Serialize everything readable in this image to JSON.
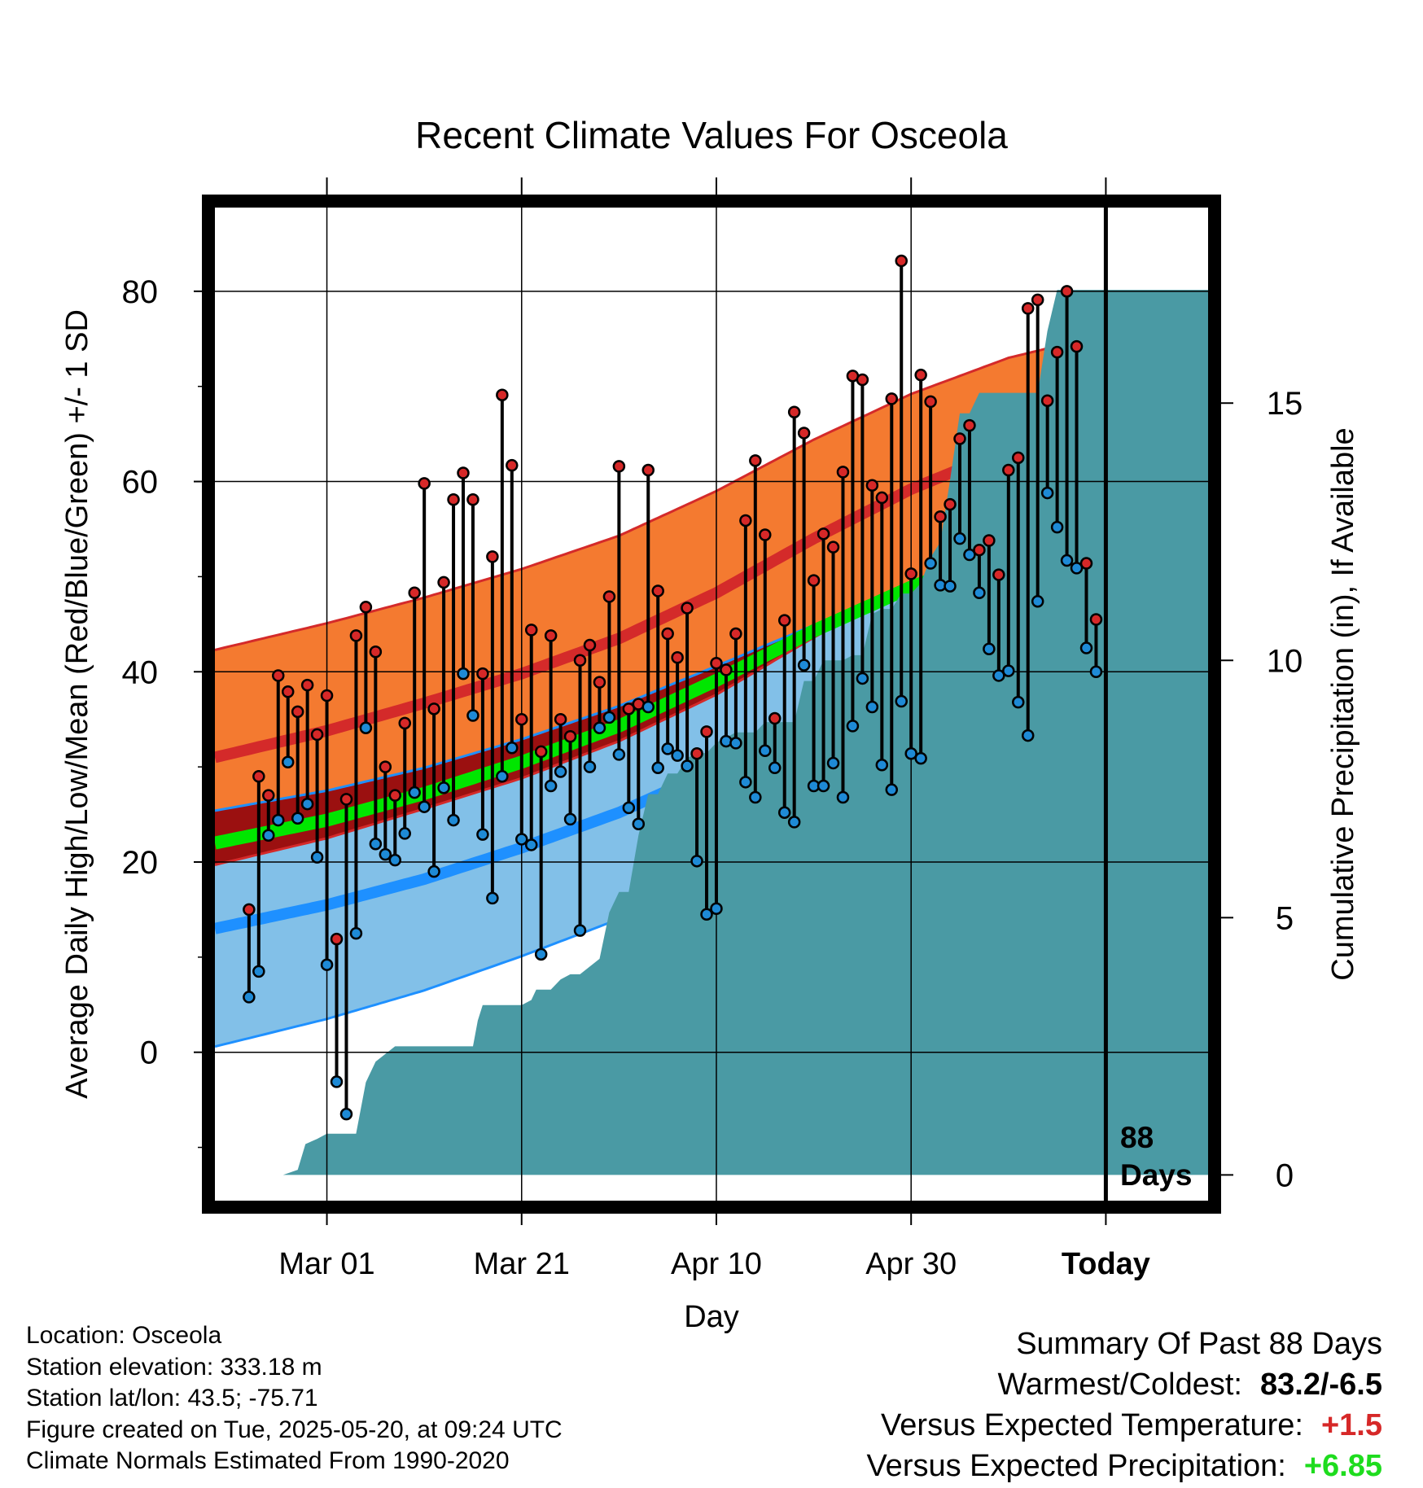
{
  "chart_data": {
    "type": "line",
    "title": "Recent Climate Values For Osceola",
    "xlabel": "Day",
    "ylabel": "Average Daily High/Low/Mean (Red/Blue/Green) +/- 1 SD",
    "y2label": "Cumulative Precipitation (in), If Available",
    "x_tick_labels": [
      "Mar 01",
      "Mar 21",
      "Apr 10",
      "Apr 30",
      "Today"
    ],
    "x_range_days": [
      -11.5,
      90.5
    ],
    "ylim": [
      -15.6,
      88.8
    ],
    "y_ticks": [
      0,
      20,
      40,
      60,
      80
    ],
    "y2lim": [
      -0.5,
      18.8
    ],
    "y2_ticks": [
      0,
      5,
      10,
      15
    ],
    "days_label": "88 Days",
    "grid": true,
    "colors": {
      "high_band": "#f47a30",
      "high_mean": "#d42a2a",
      "low_band": "#82c0e8",
      "low_mean": "#1e90ff",
      "mean": "#00e600",
      "precip": "#4a9aa4",
      "high_dot": "#d62828",
      "low_dot": "#1e8ad6"
    },
    "normals": {
      "day": [
        -11.5,
        0,
        10,
        20,
        30,
        40,
        50,
        60,
        70,
        80,
        90.5
      ],
      "high_mean": [
        31,
        33.8,
        36.7,
        39.8,
        43.5,
        48.3,
        54,
        59.2,
        63.4,
        66.3,
        69
      ],
      "high_sd": [
        11.3,
        11.3,
        11.1,
        11,
        10.8,
        10.7,
        10.4,
        10,
        9.6,
        9.2,
        8.8
      ],
      "low_mean": [
        13,
        15.5,
        18.2,
        21.5,
        25.2,
        29.8,
        34.5,
        38.6,
        42,
        45,
        48.7
      ],
      "low_sd": [
        12.4,
        12,
        11.7,
        11.4,
        11.2,
        10.8,
        10.4,
        9.9,
        9.5,
        9.2,
        7.6
      ],
      "mean": [
        22,
        24.4,
        27.2,
        30.5,
        34.3,
        39.1,
        44.3,
        48.9,
        52.7,
        55.6,
        58.8
      ]
    },
    "series": [
      {
        "name": "High",
        "x": [
          -8,
          -7,
          -6,
          -5,
          -4,
          -3,
          -2,
          -1,
          0,
          1,
          2,
          3,
          4,
          5,
          6,
          7,
          8,
          9,
          10,
          11,
          12,
          13,
          14,
          15,
          16,
          17,
          18,
          19,
          20,
          21,
          22,
          23,
          24,
          25,
          26,
          27,
          28,
          29,
          30,
          31,
          32,
          33,
          34,
          35,
          36,
          37,
          38,
          39,
          40,
          41,
          42,
          43,
          44,
          45,
          46,
          47,
          48,
          49,
          50,
          51,
          52,
          53,
          54,
          55,
          56,
          57,
          58,
          59,
          60,
          61,
          62,
          63,
          64,
          65,
          66,
          67,
          68,
          69,
          70,
          71,
          72,
          73,
          74,
          75,
          76,
          77,
          78,
          79
        ],
        "values": [
          15,
          29,
          27,
          39.6,
          37.9,
          35.8,
          38.6,
          33.4,
          37.5,
          11.9,
          26.6,
          43.8,
          46.8,
          42.1,
          30,
          27,
          34.6,
          48.3,
          59.8,
          36.1,
          49.4,
          58.1,
          60.9,
          58.1,
          39.8,
          52.1,
          69.1,
          61.7,
          35,
          44.4,
          31.6,
          43.8,
          35,
          33.2,
          41.2,
          42.8,
          38.9,
          47.9,
          61.6,
          36.1,
          36.6,
          61.2,
          48.5,
          44,
          41.5,
          46.7,
          31.4,
          33.7,
          40.9,
          40.2,
          44,
          55.9,
          62.2,
          54.4,
          35.1,
          45.4,
          67.3,
          65.1,
          49.6,
          54.5,
          53.1,
          61,
          71.1,
          70.7,
          59.6,
          58.3,
          68.7,
          83.2,
          50.3,
          71.2,
          68.4,
          56.3,
          57.6,
          64.5,
          65.9,
          52.8,
          53.8,
          50.2,
          61.2,
          62.5,
          78.2,
          79.1,
          68.5,
          73.6,
          80,
          74.2,
          51.4,
          45.5
        ]
      },
      {
        "name": "Low",
        "x": [
          -8,
          -7,
          -6,
          -5,
          -4,
          -3,
          -2,
          -1,
          0,
          1,
          2,
          3,
          4,
          5,
          6,
          7,
          8,
          9,
          10,
          11,
          12,
          13,
          14,
          15,
          16,
          17,
          18,
          19,
          20,
          21,
          22,
          23,
          24,
          25,
          26,
          27,
          28,
          29,
          30,
          31,
          32,
          33,
          34,
          35,
          36,
          37,
          38,
          39,
          40,
          41,
          42,
          43,
          44,
          45,
          46,
          47,
          48,
          49,
          50,
          51,
          52,
          53,
          54,
          55,
          56,
          57,
          58,
          59,
          60,
          61,
          62,
          63,
          64,
          65,
          66,
          67,
          68,
          69,
          70,
          71,
          72,
          73,
          74,
          75,
          76,
          77,
          78,
          79
        ],
        "values": [
          5.8,
          8.5,
          22.8,
          24.4,
          30.5,
          24.6,
          26.1,
          20.5,
          9.2,
          -3.1,
          -6.5,
          12.5,
          34.1,
          21.9,
          20.8,
          20.2,
          23,
          27.3,
          25.8,
          19,
          27.8,
          24.4,
          39.8,
          35.4,
          22.9,
          16.2,
          29,
          32,
          22.4,
          21.8,
          10.3,
          28,
          29.5,
          24.5,
          12.8,
          30,
          34.1,
          35.2,
          31.3,
          25.7,
          24,
          36.3,
          29.9,
          31.9,
          31.2,
          30.1,
          20.1,
          14.5,
          15.1,
          32.7,
          32.5,
          28.4,
          26.8,
          31.7,
          29.9,
          25.2,
          24.2,
          40.7,
          28,
          28,
          30.4,
          26.8,
          34.3,
          39.3,
          36.3,
          30.2,
          27.6,
          36.9,
          31.4,
          30.9,
          51.4,
          49.1,
          49,
          54,
          52.3,
          48.3,
          42.4,
          39.6,
          40.1,
          36.8,
          33.3,
          47.4,
          58.8,
          55.2,
          51.7,
          50.9,
          42.5,
          40
        ]
      }
    ],
    "precip": {
      "x": [
        -11.5,
        -4.5,
        -3,
        -2.2,
        -1,
        0,
        1,
        2,
        3,
        4,
        5,
        7,
        10,
        15,
        15.5,
        16,
        17,
        18,
        20,
        21,
        21.5,
        22,
        23,
        24,
        25,
        26,
        28,
        29,
        30,
        31,
        32,
        33,
        34,
        35,
        36,
        37,
        38,
        39,
        40,
        41,
        42,
        43,
        44,
        45,
        46,
        47,
        48,
        49,
        50,
        51,
        52,
        53,
        54,
        55,
        56,
        57,
        58,
        59,
        60,
        61,
        62,
        63,
        64,
        65,
        66,
        67,
        68,
        69,
        70,
        71,
        72,
        73,
        74,
        75,
        76,
        77,
        78,
        79,
        80,
        90.5
      ],
      "values": [
        0,
        0,
        0.1,
        0.6,
        0.7,
        0.8,
        0.8,
        0.8,
        0.8,
        1.8,
        2.2,
        2.5,
        2.5,
        2.5,
        3,
        3.3,
        3.3,
        3.3,
        3.3,
        3.4,
        3.6,
        3.6,
        3.6,
        3.8,
        3.9,
        3.9,
        4.2,
        5.1,
        5.5,
        5.5,
        6.6,
        7.4,
        7.4,
        7.8,
        7.8,
        8.1,
        8.2,
        8.2,
        8.4,
        8.5,
        8.6,
        8.6,
        8.6,
        8.8,
        8.8,
        8.8,
        8.8,
        9.6,
        9.6,
        10,
        10,
        10,
        10.1,
        10.1,
        10.9,
        11,
        11,
        11.3,
        11.3,
        11.5,
        12,
        12.3,
        13.5,
        14.8,
        14.8,
        15.2,
        15.2,
        15.2,
        15.2,
        15.2,
        15.2,
        15.2,
        16.4,
        17.2,
        17.2,
        17.2,
        17.2,
        17.2,
        17.2,
        17.2
      ]
    }
  },
  "footer": {
    "location": "Location: Osceola",
    "elevation": "Station elevation: 333.18 m",
    "latlon": "Station lat/lon: 43.5; -75.71",
    "created": "Figure created on Tue, 2025-05-20, at 09:24 UTC",
    "normals": "Climate Normals Estimated From 1990-2020"
  },
  "summary": {
    "title": "Summary Of Past 88 Days",
    "warm_cold_label": "Warmest/Coldest:",
    "warm_cold_value": "83.2/-6.5",
    "temp_label": "Versus Expected Temperature:",
    "temp_value": "+1.5",
    "precip_label": "Versus Expected Precipitation:",
    "precip_value": "+6.85"
  }
}
